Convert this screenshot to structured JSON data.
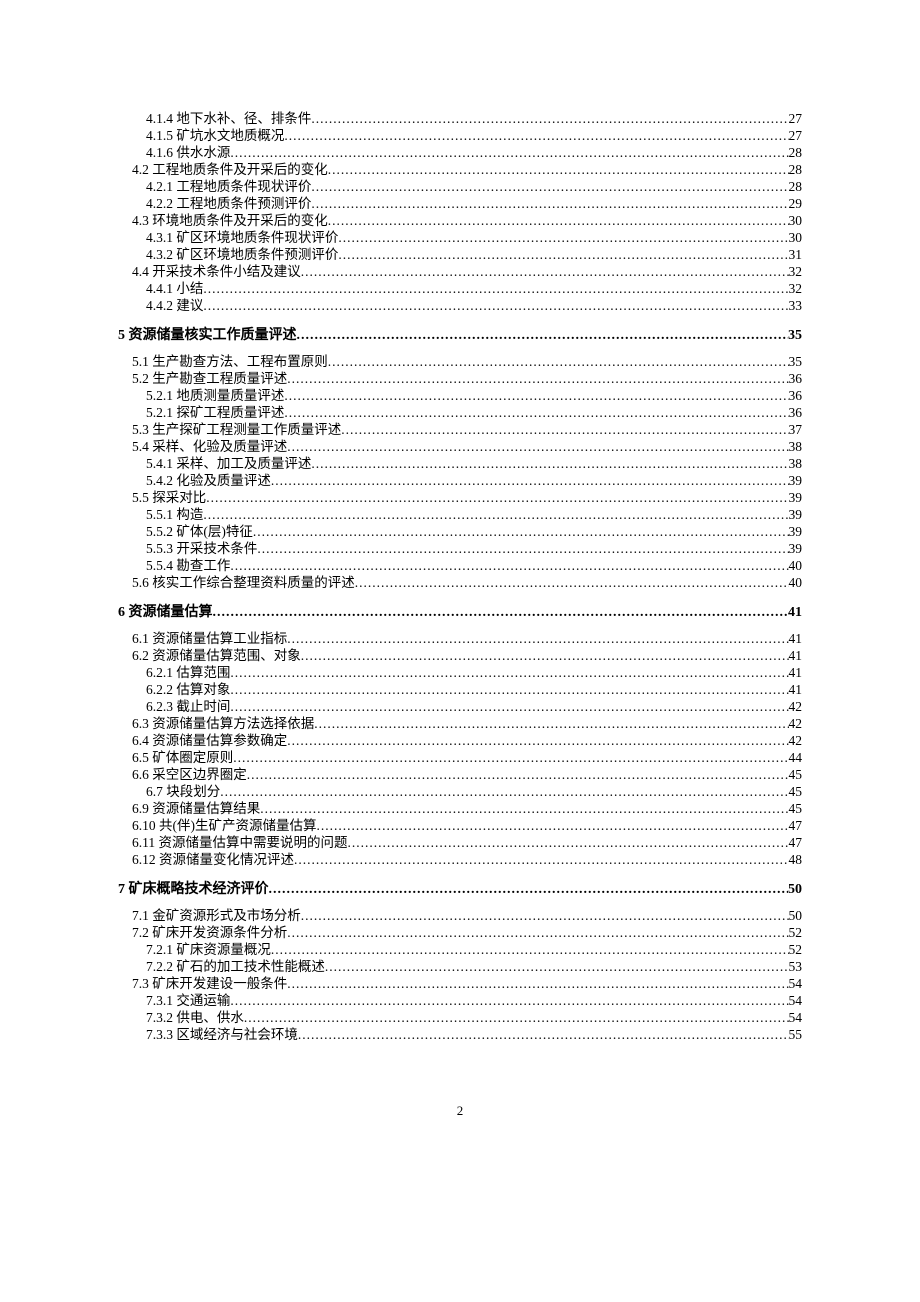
{
  "page_number": "2",
  "entries": [
    {
      "level": 2,
      "label": "4.1.4 地下水补、径、排条件",
      "page": "27"
    },
    {
      "level": 2,
      "label": "4.1.5 矿坑水文地质概况",
      "page": "27"
    },
    {
      "level": 2,
      "label": "4.1.6 供水水源",
      "page": "28"
    },
    {
      "level": 1,
      "label": "4.2 工程地质条件及开采后的变化",
      "page": "28"
    },
    {
      "level": 2,
      "label": "4.2.1 工程地质条件现状评价",
      "page": "28"
    },
    {
      "level": 2,
      "label": "4.2.2 工程地质条件预测评价",
      "page": "29"
    },
    {
      "level": 1,
      "label": "4.3 环境地质条件及开采后的变化",
      "page": "30"
    },
    {
      "level": 2,
      "label": "4.3.1 矿区环境地质条件现状评价",
      "page": "30"
    },
    {
      "level": 2,
      "label": "4.3.2 矿区环境地质条件预测评价",
      "page": "31"
    },
    {
      "level": 1,
      "label": "4.4 开采技术条件小结及建议",
      "page": "32"
    },
    {
      "level": 2,
      "label": "4.4.1 小结",
      "page": "32"
    },
    {
      "level": 2,
      "label": "4.4.2 建议",
      "page": "33"
    },
    {
      "level": 0,
      "label": "5 资源储量核实工作质量评述",
      "page": "35"
    },
    {
      "level": 1,
      "label": "5.1 生产勘查方法、工程布置原则",
      "page": "35"
    },
    {
      "level": 1,
      "label": "5.2 生产勘查工程质量评述",
      "page": "36"
    },
    {
      "level": 2,
      "label": "5.2.1 地质测量质量评述",
      "page": "36"
    },
    {
      "level": 2,
      "label": "5.2.1 探矿工程质量评述",
      "page": "36"
    },
    {
      "level": 1,
      "label": "5.3 生产探矿工程测量工作质量评述",
      "page": "37"
    },
    {
      "level": 1,
      "label": "5.4 采样、化验及质量评述",
      "page": "38"
    },
    {
      "level": 2,
      "label": "5.4.1 采样、加工及质量评述",
      "page": "38"
    },
    {
      "level": 2,
      "label": "5.4.2 化验及质量评述",
      "page": "39"
    },
    {
      "level": 1,
      "label": "5.5 探采对比",
      "page": "39"
    },
    {
      "level": 2,
      "label": "5.5.1 构造",
      "page": "39"
    },
    {
      "level": 2,
      "label": "5.5.2 矿体(层)特征",
      "page": "39"
    },
    {
      "level": 2,
      "label": "5.5.3 开采技术条件",
      "page": "39"
    },
    {
      "level": 2,
      "label": "5.5.4 勘查工作",
      "page": "40"
    },
    {
      "level": 1,
      "label": "5.6 核实工作综合整理资料质量的评述",
      "page": "40"
    },
    {
      "level": 0,
      "label": "6 资源储量估算",
      "page": "41"
    },
    {
      "level": 1,
      "label": "6.1 资源储量估算工业指标",
      "page": "41"
    },
    {
      "level": 1,
      "label": "6.2 资源储量估算范围、对象",
      "page": "41"
    },
    {
      "level": 2,
      "label": "6.2.1 估算范围",
      "page": "41"
    },
    {
      "level": 2,
      "label": "6.2.2 估算对象",
      "page": "41"
    },
    {
      "level": 2,
      "label": "6.2.3 截止时间",
      "page": "42"
    },
    {
      "level": 1,
      "label": "6.3 资源储量估算方法选择依据",
      "page": "42"
    },
    {
      "level": 1,
      "label": "6.4 资源储量估算参数确定",
      "page": "42"
    },
    {
      "level": 1,
      "label": "6.5 矿体圈定原则",
      "page": "44"
    },
    {
      "level": 1,
      "label": "6.6 采空区边界圈定",
      "page": "45"
    },
    {
      "level": 2,
      "label": "6.7 块段划分",
      "page": "45"
    },
    {
      "level": 1,
      "label": "6.9 资源储量估算结果",
      "page": "45"
    },
    {
      "level": 1,
      "label": "6.10 共(伴)生矿产资源储量估算",
      "page": "47"
    },
    {
      "level": 1,
      "label": "6.11 资源储量估算中需要说明的问题",
      "page": "47"
    },
    {
      "level": 1,
      "label": "6.12 资源储量变化情况评述",
      "page": "48"
    },
    {
      "level": 0,
      "label": "7 矿床概略技术经济评价",
      "page": "50"
    },
    {
      "level": 1,
      "label": "7.1 金矿资源形式及市场分析",
      "page": "50"
    },
    {
      "level": 1,
      "label": "7.2 矿床开发资源条件分析",
      "page": "52"
    },
    {
      "level": 2,
      "label": "7.2.1 矿床资源量概况",
      "page": "52"
    },
    {
      "level": 2,
      "label": "7.2.2 矿石的加工技术性能概述",
      "page": "53"
    },
    {
      "level": 1,
      "label": "7.3 矿床开发建设一般条件",
      "page": "54"
    },
    {
      "level": 2,
      "label": "7.3.1 交通运输",
      "page": "54"
    },
    {
      "level": 2,
      "label": "7.3.2 供电、供水",
      "page": "54"
    },
    {
      "level": 2,
      "label": "7.3.3 区域经济与社会环境",
      "page": "55"
    }
  ]
}
